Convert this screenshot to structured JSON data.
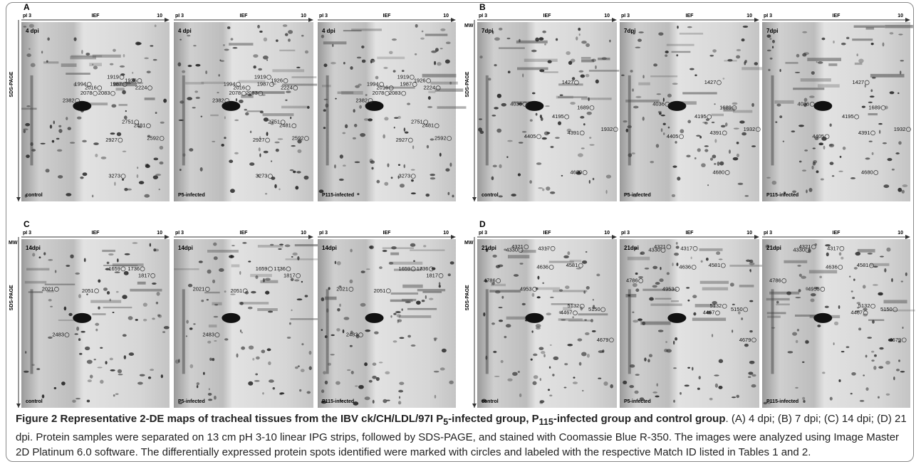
{
  "axis": {
    "start": "pI 3",
    "middle": "IEF",
    "end": "10",
    "mw": "MW",
    "vertical": "SDS-PAGE"
  },
  "groups": [
    "control",
    "P5-infected",
    "P115-infected"
  ],
  "panels": [
    {
      "letter": "A",
      "dpi": "4 dpi",
      "spots": [
        1919,
        1926,
        1994,
        1987,
        2224,
        2016,
        2078,
        2083,
        2382,
        2751,
        2481,
        2592,
        2927,
        3273
      ]
    },
    {
      "letter": "B",
      "dpi": "7dpi",
      "spots": [
        1427,
        4036,
        4195,
        1689,
        4405,
        4391,
        1932,
        4680
      ]
    },
    {
      "letter": "C",
      "dpi": "14dpi",
      "spots": [
        1659,
        1736,
        1817,
        2021,
        2051,
        2483
      ]
    },
    {
      "letter": "D",
      "dpi": "21dpi",
      "spots": [
        4321,
        4330,
        4317,
        4636,
        4581,
        4786,
        4953,
        5132,
        5150,
        4467,
        4679
      ]
    }
  ],
  "caption": {
    "label": "Figure 2",
    "title_parts": [
      " Representative 2-DE maps of tracheal tissues from the IBV ck/CH/LDL/97I P",
      "5",
      "-infected group, P",
      "115",
      "-infected group and control group"
    ],
    "body": ". (A) 4 dpi; (B) 7 dpi; (C) 14 dpi; (D) 21 dpi. Protein samples were separated on 13 cm pH 3-10 linear IPG strips, followed by SDS-PAGE, and stained with Coomassie Blue R-350. The images were analyzed using Image Master 2D Platinum 6.0 software. The differentially expressed protein spots identified were marked with circles and labeled with the respective Match ID listed in Tables 1 and 2."
  }
}
